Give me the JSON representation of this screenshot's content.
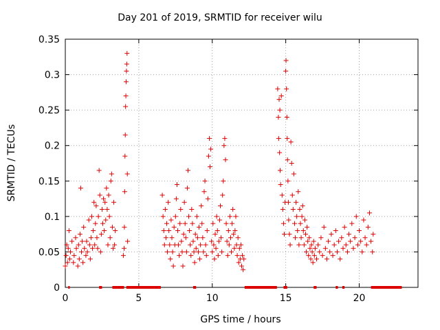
{
  "chart_data": {
    "type": "scatter",
    "title": "Day 201 of 2019, SRMTID for receiver wilu",
    "xlabel": "GPS time / hours",
    "ylabel": "SRMTID / TECUs",
    "xlim": [
      0,
      24
    ],
    "ylim": [
      0,
      0.35
    ],
    "x_ticks": [
      0,
      5,
      10,
      15,
      20
    ],
    "x_tick_labels": [
      "0",
      "5",
      "10",
      "15",
      "20"
    ],
    "y_ticks": [
      0,
      0.05,
      0.1,
      0.15,
      0.2,
      0.25,
      0.3,
      0.35
    ],
    "y_tick_labels": [
      "0",
      "0.05",
      "0.1",
      "0.15",
      "0.2",
      "0.25",
      "0.3",
      "0.35"
    ],
    "grid": true,
    "marker": "+",
    "color": "#dd0000",
    "series": [
      {
        "name": "SRMTID",
        "points": [
          [
            0.0,
            0.03
          ],
          [
            0.05,
            0.045
          ],
          [
            0.1,
            0.06
          ],
          [
            0.15,
            0.035
          ],
          [
            0.2,
            0.055
          ],
          [
            0.25,
            0.08
          ],
          [
            0.3,
            0.04
          ],
          [
            0.35,
            0.05
          ],
          [
            0.45,
            0.065
          ],
          [
            0.55,
            0.035
          ],
          [
            0.6,
            0.045
          ],
          [
            0.7,
            0.07
          ],
          [
            0.75,
            0.055
          ],
          [
            0.85,
            0.03
          ],
          [
            0.9,
            0.06
          ],
          [
            0.95,
            0.04
          ],
          [
            1.0,
            0.075
          ],
          [
            1.05,
            0.14
          ],
          [
            1.1,
            0.05
          ],
          [
            1.15,
            0.065
          ],
          [
            1.2,
            0.035
          ],
          [
            1.25,
            0.085
          ],
          [
            1.3,
            0.055
          ],
          [
            1.4,
            0.045
          ],
          [
            1.45,
            0.065
          ],
          [
            1.5,
            0.05
          ],
          [
            1.6,
            0.095
          ],
          [
            1.65,
            0.06
          ],
          [
            1.7,
            0.04
          ],
          [
            1.75,
            0.07
          ],
          [
            1.8,
            0.1
          ],
          [
            1.85,
            0.055
          ],
          [
            1.9,
            0.08
          ],
          [
            1.95,
            0.12
          ],
          [
            2.0,
            0.06
          ],
          [
            2.05,
            0.09
          ],
          [
            2.1,
            0.115
          ],
          [
            2.15,
            0.07
          ],
          [
            2.2,
            0.055
          ],
          [
            2.25,
            0.1
          ],
          [
            2.3,
            0.165
          ],
          [
            2.35,
            0.13
          ],
          [
            2.4,
            0.05
          ],
          [
            2.45,
            0.075
          ],
          [
            2.5,
            0.11
          ],
          [
            2.55,
            0.09
          ],
          [
            2.6,
            0.125
          ],
          [
            2.65,
            0.08
          ],
          [
            2.7,
            0.12
          ],
          [
            2.75,
            0.095
          ],
          [
            2.8,
            0.14
          ],
          [
            2.85,
            0.11
          ],
          [
            2.9,
            0.06
          ],
          [
            2.95,
            0.13
          ],
          [
            3.0,
            0.1
          ],
          [
            3.05,
            0.07
          ],
          [
            3.1,
            0.15
          ],
          [
            3.15,
            0.16
          ],
          [
            3.2,
            0.085
          ],
          [
            3.25,
            0.055
          ],
          [
            3.3,
            0.12
          ],
          [
            3.35,
            0.06
          ],
          [
            3.4,
            0.08
          ],
          [
            3.95,
            0.045
          ],
          [
            4.0,
            0.055
          ],
          [
            4.02,
            0.085
          ],
          [
            4.04,
            0.135
          ],
          [
            4.06,
            0.185
          ],
          [
            4.08,
            0.215
          ],
          [
            4.1,
            0.255
          ],
          [
            4.12,
            0.27
          ],
          [
            4.14,
            0.29
          ],
          [
            4.16,
            0.305
          ],
          [
            4.18,
            0.315
          ],
          [
            4.2,
            0.33
          ],
          [
            4.22,
            0.16
          ],
          [
            4.24,
            0.065
          ],
          [
            6.6,
            0.13
          ],
          [
            6.65,
            0.1
          ],
          [
            6.7,
            0.08
          ],
          [
            6.75,
            0.06
          ],
          [
            6.8,
            0.11
          ],
          [
            6.85,
            0.07
          ],
          [
            6.9,
            0.09
          ],
          [
            6.95,
            0.05
          ],
          [
            7.0,
            0.12
          ],
          [
            7.05,
            0.08
          ],
          [
            7.1,
            0.06
          ],
          [
            7.15,
            0.04
          ],
          [
            7.2,
            0.095
          ],
          [
            7.25,
            0.07
          ],
          [
            7.3,
            0.05
          ],
          [
            7.35,
            0.03
          ],
          [
            7.4,
            0.085
          ],
          [
            7.45,
            0.06
          ],
          [
            7.5,
            0.1
          ],
          [
            7.55,
            0.125
          ],
          [
            7.6,
            0.145
          ],
          [
            7.65,
            0.08
          ],
          [
            7.7,
            0.06
          ],
          [
            7.75,
            0.045
          ],
          [
            7.8,
            0.09
          ],
          [
            7.85,
            0.11
          ],
          [
            7.9,
            0.065
          ],
          [
            7.95,
            0.05
          ],
          [
            8.0,
            0.03
          ],
          [
            8.05,
            0.075
          ],
          [
            8.1,
            0.12
          ],
          [
            8.15,
            0.09
          ],
          [
            8.2,
            0.07
          ],
          [
            8.25,
            0.05
          ],
          [
            8.3,
            0.14
          ],
          [
            8.35,
            0.165
          ],
          [
            8.4,
            0.1
          ],
          [
            8.45,
            0.08
          ],
          [
            8.5,
            0.06
          ],
          [
            8.55,
            0.045
          ],
          [
            8.6,
            0.11
          ],
          [
            8.65,
            0.09
          ],
          [
            8.7,
            0.065
          ],
          [
            8.75,
            0.05
          ],
          [
            8.8,
            0.035
          ],
          [
            8.85,
            0.075
          ],
          [
            8.9,
            0.055
          ],
          [
            8.95,
            0.1
          ],
          [
            9.0,
            0.07
          ],
          [
            9.05,
            0.05
          ],
          [
            9.1,
            0.085
          ],
          [
            9.15,
            0.04
          ],
          [
            9.2,
            0.06
          ],
          [
            9.25,
            0.115
          ],
          [
            9.3,
            0.09
          ],
          [
            9.35,
            0.07
          ],
          [
            9.4,
            0.05
          ],
          [
            9.45,
            0.135
          ],
          [
            9.5,
            0.15
          ],
          [
            9.55,
            0.06
          ],
          [
            9.6,
            0.045
          ],
          [
            9.65,
            0.08
          ],
          [
            9.7,
            0.125
          ],
          [
            9.75,
            0.185
          ],
          [
            9.8,
            0.21
          ],
          [
            9.85,
            0.17
          ],
          [
            9.9,
            0.195
          ],
          [
            9.95,
            0.065
          ],
          [
            10.0,
            0.05
          ],
          [
            10.05,
            0.09
          ],
          [
            10.1,
            0.06
          ],
          [
            10.15,
            0.04
          ],
          [
            10.2,
            0.075
          ],
          [
            10.25,
            0.055
          ],
          [
            10.3,
            0.1
          ],
          [
            10.35,
            0.08
          ],
          [
            10.4,
            0.045
          ],
          [
            10.45,
            0.065
          ],
          [
            10.5,
            0.095
          ],
          [
            10.55,
            0.115
          ],
          [
            10.6,
            0.07
          ],
          [
            10.65,
            0.05
          ],
          [
            10.7,
            0.13
          ],
          [
            10.75,
            0.15
          ],
          [
            10.8,
            0.2
          ],
          [
            10.85,
            0.21
          ],
          [
            10.9,
            0.18
          ],
          [
            10.95,
            0.09
          ],
          [
            11.0,
            0.065
          ],
          [
            11.05,
            0.045
          ],
          [
            11.1,
            0.08
          ],
          [
            11.15,
            0.06
          ],
          [
            11.2,
            0.1
          ],
          [
            11.25,
            0.07
          ],
          [
            11.3,
            0.05
          ],
          [
            11.35,
            0.09
          ],
          [
            11.4,
            0.11
          ],
          [
            11.45,
            0.075
          ],
          [
            11.5,
            0.055
          ],
          [
            11.55,
            0.08
          ],
          [
            11.6,
            0.1
          ],
          [
            11.65,
            0.06
          ],
          [
            11.7,
            0.045
          ],
          [
            11.75,
            0.07
          ],
          [
            11.8,
            0.035
          ],
          [
            11.85,
            0.055
          ],
          [
            11.9,
            0.04
          ],
          [
            11.95,
            0.06
          ],
          [
            12.0,
            0.03
          ],
          [
            12.05,
            0.045
          ],
          [
            12.1,
            0.025
          ],
          [
            12.15,
            0.04
          ],
          [
            14.45,
            0.28
          ],
          [
            14.5,
            0.24
          ],
          [
            14.52,
            0.21
          ],
          [
            14.55,
            0.265
          ],
          [
            14.58,
            0.19
          ],
          [
            14.6,
            0.25
          ],
          [
            14.62,
            0.165
          ],
          [
            14.65,
            0.145
          ],
          [
            14.7,
            0.27
          ],
          [
            14.75,
            0.13
          ],
          [
            14.8,
            0.11
          ],
          [
            14.85,
            0.09
          ],
          [
            14.9,
            0.075
          ],
          [
            14.95,
            0.12
          ],
          [
            15.0,
            0.305
          ],
          [
            15.02,
            0.32
          ],
          [
            15.05,
            0.28
          ],
          [
            15.08,
            0.24
          ],
          [
            15.1,
            0.21
          ],
          [
            15.12,
            0.18
          ],
          [
            15.15,
            0.15
          ],
          [
            15.18,
            0.12
          ],
          [
            15.2,
            0.095
          ],
          [
            15.25,
            0.075
          ],
          [
            15.3,
            0.06
          ],
          [
            15.35,
            0.205
          ],
          [
            15.4,
            0.175
          ],
          [
            15.45,
            0.13
          ],
          [
            15.5,
            0.11
          ],
          [
            15.55,
            0.16
          ],
          [
            15.6,
            0.09
          ],
          [
            15.65,
            0.07
          ],
          [
            15.7,
            0.12
          ],
          [
            15.75,
            0.1
          ],
          [
            15.8,
            0.08
          ],
          [
            15.85,
            0.135
          ],
          [
            15.9,
            0.06
          ],
          [
            15.95,
            0.11
          ],
          [
            16.0,
            0.09
          ],
          [
            16.05,
            0.07
          ],
          [
            16.1,
            0.1
          ],
          [
            16.15,
            0.115
          ],
          [
            16.2,
            0.08
          ],
          [
            16.25,
            0.06
          ],
          [
            16.3,
            0.095
          ],
          [
            16.35,
            0.075
          ],
          [
            16.4,
            0.05
          ],
          [
            16.45,
            0.085
          ],
          [
            16.5,
            0.065
          ],
          [
            16.55,
            0.045
          ],
          [
            16.6,
            0.07
          ],
          [
            16.65,
            0.055
          ],
          [
            16.7,
            0.04
          ],
          [
            16.75,
            0.06
          ],
          [
            16.8,
            0.05
          ],
          [
            16.85,
            0.035
          ],
          [
            16.9,
            0.065
          ],
          [
            16.95,
            0.045
          ],
          [
            17.0,
            0.055
          ],
          [
            17.1,
            0.04
          ],
          [
            17.2,
            0.06
          ],
          [
            17.3,
            0.05
          ],
          [
            17.4,
            0.07
          ],
          [
            17.5,
            0.045
          ],
          [
            17.6,
            0.085
          ],
          [
            17.7,
            0.055
          ],
          [
            17.8,
            0.04
          ],
          [
            17.9,
            0.065
          ],
          [
            18.0,
            0.05
          ],
          [
            18.1,
            0.075
          ],
          [
            18.2,
            0.045
          ],
          [
            18.3,
            0.06
          ],
          [
            18.4,
            0.08
          ],
          [
            18.5,
            0.05
          ],
          [
            18.6,
            0.065
          ],
          [
            18.7,
            0.04
          ],
          [
            18.8,
            0.07
          ],
          [
            18.9,
            0.055
          ],
          [
            19.0,
            0.085
          ],
          [
            19.1,
            0.06
          ],
          [
            19.2,
            0.05
          ],
          [
            19.3,
            0.075
          ],
          [
            19.4,
            0.065
          ],
          [
            19.5,
            0.09
          ],
          [
            19.6,
            0.055
          ],
          [
            19.7,
            0.07
          ],
          [
            19.8,
            0.1
          ],
          [
            19.9,
            0.06
          ],
          [
            20.0,
            0.08
          ],
          [
            20.1,
            0.065
          ],
          [
            20.2,
            0.05
          ],
          [
            20.3,
            0.095
          ],
          [
            20.4,
            0.07
          ],
          [
            20.5,
            0.06
          ],
          [
            20.6,
            0.085
          ],
          [
            20.7,
            0.105
          ],
          [
            20.8,
            0.065
          ],
          [
            20.9,
            0.05
          ],
          [
            20.95,
            0.075
          ]
        ]
      }
    ],
    "gap_markers": {
      "y": 0,
      "segments": [
        [
          0.2,
          0.3
        ],
        [
          2.3,
          2.5
        ],
        [
          3.2,
          4.0
        ],
        [
          4.15,
          6.5
        ],
        [
          8.7,
          8.9
        ],
        [
          12.2,
          14.4
        ],
        [
          14.85,
          15.1
        ],
        [
          16.9,
          17.1
        ],
        [
          18.4,
          18.55
        ],
        [
          18.85,
          19.0
        ],
        [
          20.8,
          22.9
        ]
      ]
    }
  }
}
